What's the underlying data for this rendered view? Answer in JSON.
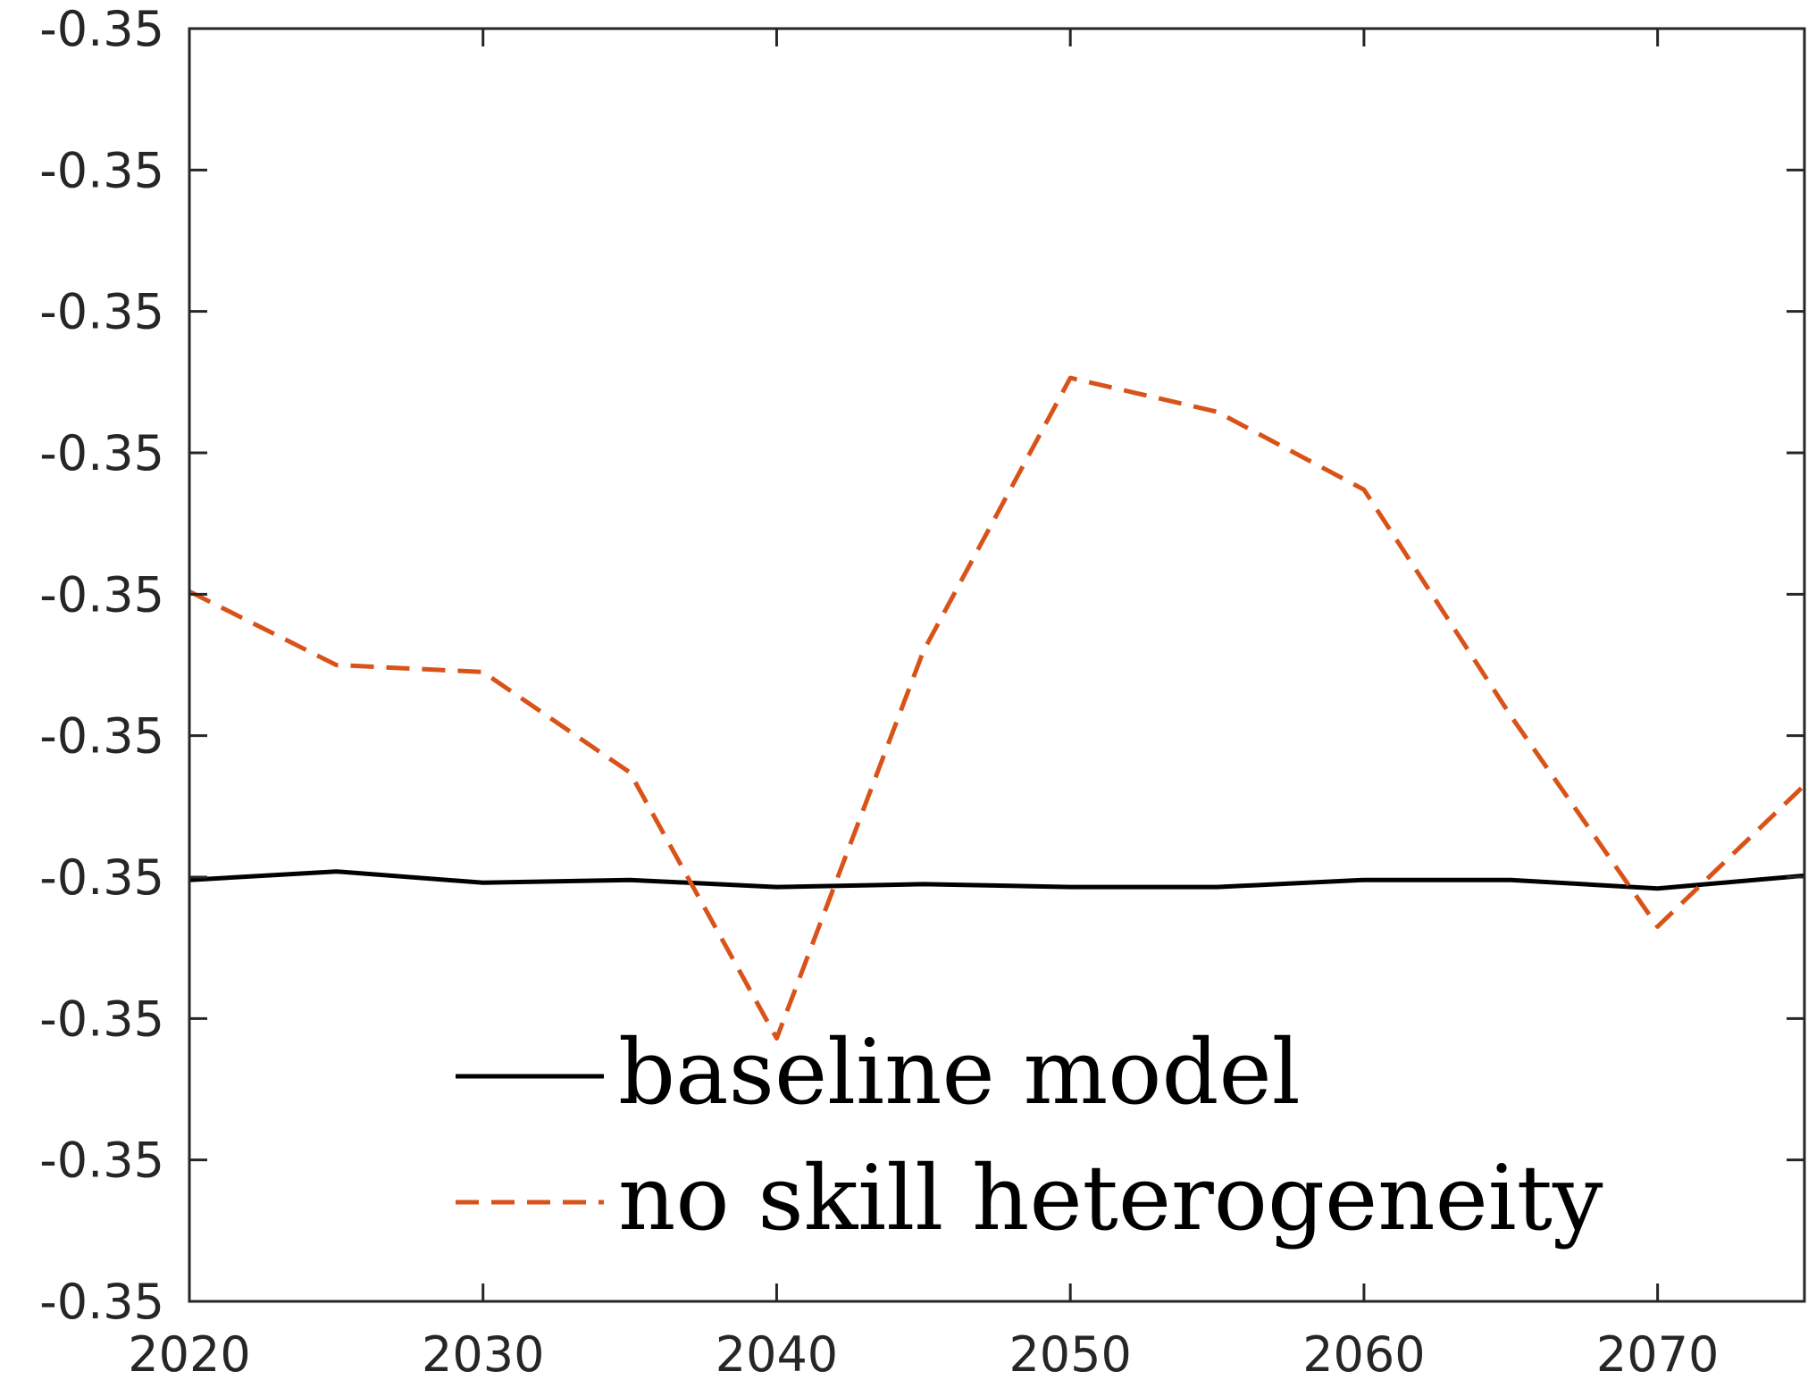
{
  "chart_data": {
    "type": "line",
    "title": "",
    "xlabel": "",
    "ylabel": "",
    "xlim": [
      2020,
      2075
    ],
    "ylim": [
      0,
      9
    ],
    "x_ticks": [
      2020,
      2030,
      2040,
      2050,
      2060,
      2070
    ],
    "x_tick_labels": [
      "2020",
      "2030",
      "2040",
      "2050",
      "2060",
      "2070"
    ],
    "y_ticks": [
      0,
      1,
      2,
      3,
      4,
      5,
      6,
      7,
      8,
      9
    ],
    "y_tick_labels": [
      "-0.35",
      "-0.35",
      "-0.35",
      "-0.35",
      "-0.35",
      "-0.35",
      "-0.35",
      "-0.35",
      "-0.35",
      "-0.35"
    ],
    "grid": false,
    "legend_position": "bottom-center",
    "series": [
      {
        "name": "baseline model",
        "color": "#000000",
        "style": "solid",
        "x": [
          2020,
          2025,
          2030,
          2035,
          2040,
          2045,
          2050,
          2055,
          2060,
          2065,
          2070,
          2075
        ],
        "values": [
          2.98,
          3.04,
          2.96,
          2.98,
          2.93,
          2.95,
          2.93,
          2.93,
          2.98,
          2.98,
          2.92,
          3.01
        ]
      },
      {
        "name": "no skill heterogeneity",
        "color": "#D95319",
        "style": "dashed",
        "x": [
          2020,
          2025,
          2030,
          2035,
          2040,
          2045,
          2050,
          2055,
          2060,
          2065,
          2070,
          2075
        ],
        "values": [
          5.02,
          4.5,
          4.45,
          3.74,
          1.86,
          4.6,
          6.53,
          6.29,
          5.74,
          4.14,
          2.65,
          3.65
        ]
      }
    ]
  }
}
